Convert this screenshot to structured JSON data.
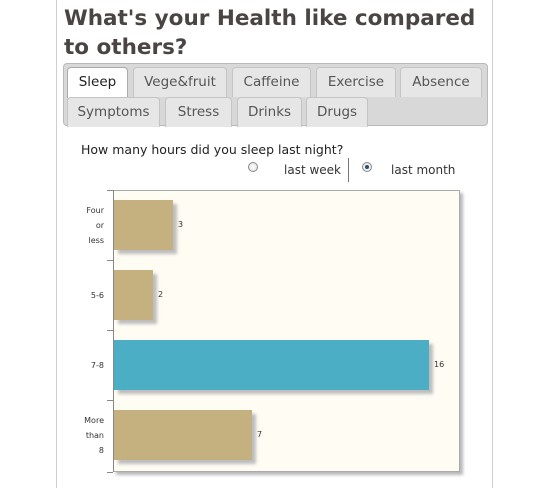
{
  "page": {
    "title": "What's your Health like compared to others?"
  },
  "tabs": [
    {
      "label": "Sleep",
      "active": true
    },
    {
      "label": "Vege&fruit",
      "active": false
    },
    {
      "label": "Caffeine",
      "active": false
    },
    {
      "label": "Exercise",
      "active": false
    },
    {
      "label": "Absence",
      "active": false
    },
    {
      "label": "Symptoms",
      "active": false
    },
    {
      "label": "Stress",
      "active": false
    },
    {
      "label": "Drinks",
      "active": false
    },
    {
      "label": "Drugs",
      "active": false
    }
  ],
  "survey": {
    "question": "How many hours did you sleep last night?",
    "options": [
      {
        "label": "last week",
        "selected": false
      },
      {
        "label": "last month",
        "selected": true
      }
    ]
  },
  "colors": {
    "bar_default": "#c5b17f",
    "bar_highlight": "#4baec4"
  },
  "chart_data": {
    "type": "bar",
    "orientation": "horizontal",
    "categories": [
      "Four or less",
      "5-6",
      "7-8",
      "More than 8"
    ],
    "values": [
      3,
      2,
      16,
      7
    ],
    "highlighted": "7-8",
    "xlim": [
      0,
      17
    ],
    "grid": false
  }
}
